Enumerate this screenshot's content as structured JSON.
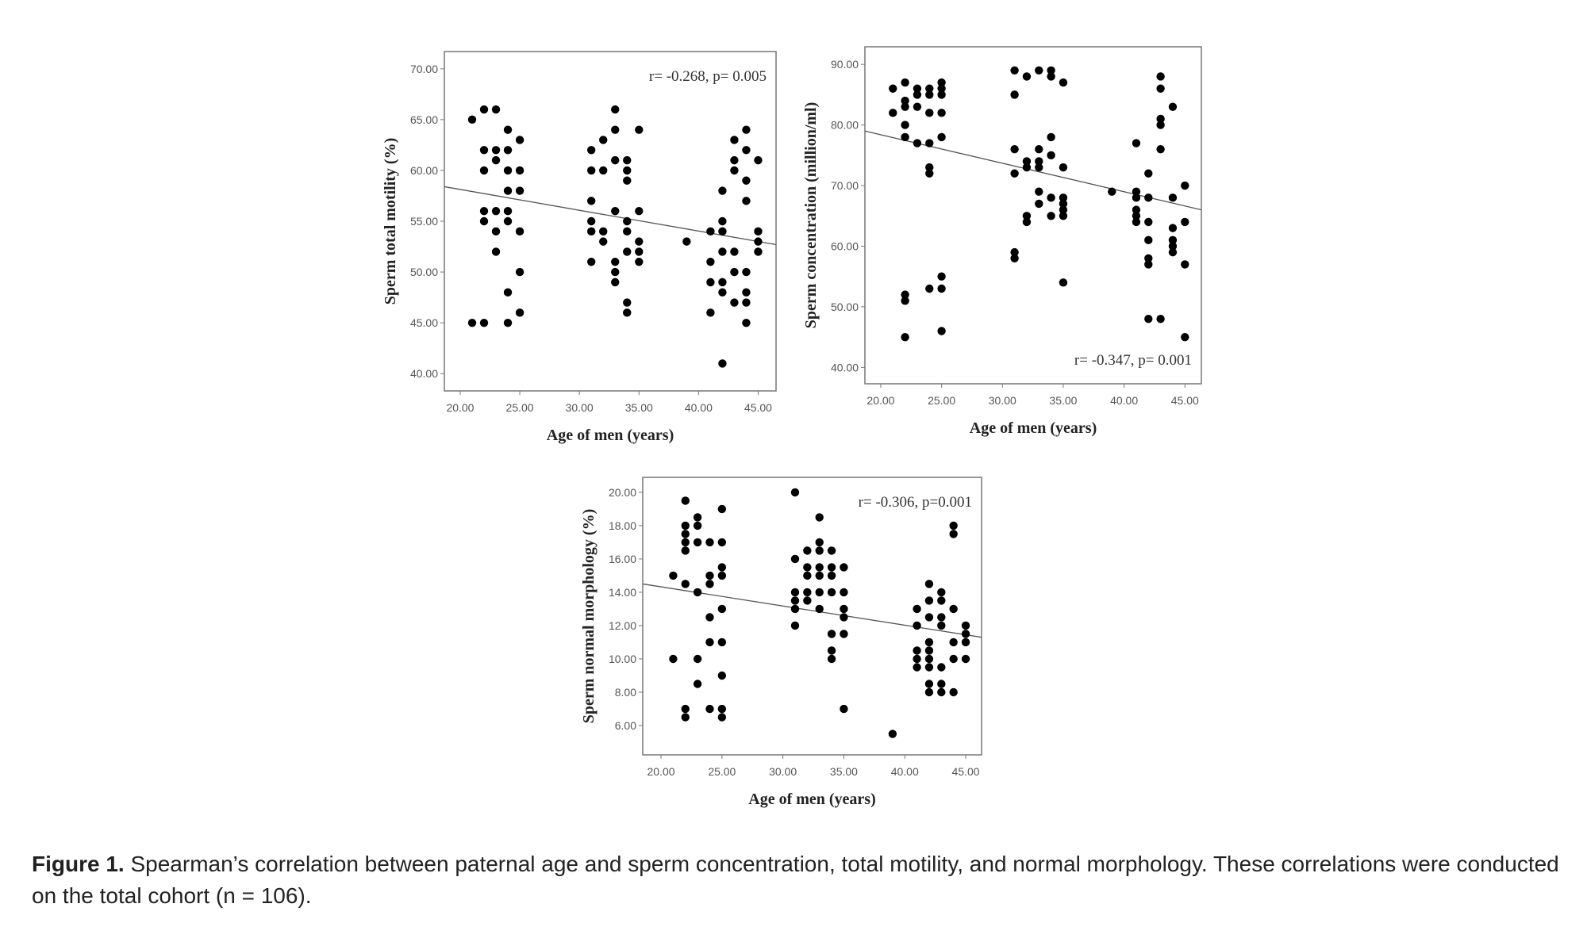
{
  "caption": {
    "label": "Figure 1.",
    "text": " Spearman’s correlation between paternal age and sperm concentration, total motility, and normal morphology. These correlations were conducted on the total cohort (n = 106)."
  },
  "chart_data": [
    {
      "type": "scatter",
      "title": "",
      "xlabel": "Age of men (years)",
      "ylabel": "Sperm total motility (%)",
      "annotation": "r= -0.268, p= 0.005",
      "xlim": [
        18.67,
        46.5
      ],
      "ylim": [
        38.3,
        71.7
      ],
      "xticks": [
        "20.00",
        "25.00",
        "30.00",
        "35.00",
        "40.00",
        "45.00"
      ],
      "yticks": [
        "40.00",
        "45.00",
        "50.00",
        "55.00",
        "60.00",
        "65.00",
        "70.00"
      ],
      "fit_line": [
        [
          18.67,
          58.4
        ],
        [
          46.5,
          52.7
        ]
      ],
      "points_by_age": {
        "21": [
          65,
          45
        ],
        "22": [
          66,
          62,
          60,
          56,
          55,
          45
        ],
        "23": [
          66,
          62,
          61,
          56,
          54,
          52
        ],
        "24": [
          64,
          62,
          60,
          58,
          56,
          55,
          48,
          45
        ],
        "25": [
          63,
          60,
          58,
          54,
          50,
          46
        ],
        "31": [
          62,
          60,
          57,
          55,
          54,
          51
        ],
        "32": [
          63,
          60,
          54,
          53
        ],
        "33": [
          66,
          64,
          61,
          56,
          51,
          50,
          49
        ],
        "34": [
          61,
          60,
          59,
          55,
          54,
          52,
          47,
          46
        ],
        "35": [
          64,
          56,
          53,
          52,
          51
        ],
        "39": [
          53
        ],
        "41": [
          54,
          51,
          49,
          46
        ],
        "42": [
          58,
          55,
          54,
          52,
          49,
          48,
          41
        ],
        "43": [
          63,
          61,
          60,
          52,
          50,
          47
        ],
        "44": [
          64,
          62,
          59,
          57,
          50,
          48,
          47,
          45
        ],
        "45": [
          61,
          54,
          53,
          52
        ]
      }
    },
    {
      "type": "scatter",
      "title": "",
      "xlabel": "Age of men (years)",
      "ylabel": "Sperm concentration (million/ml)",
      "annotation": "r= -0.347, p= 0.001",
      "xlim": [
        18.7,
        46.35
      ],
      "ylim": [
        37.3,
        92.9
      ],
      "xticks": [
        "20.00",
        "25.00",
        "30.00",
        "35.00",
        "40.00",
        "45.00"
      ],
      "yticks": [
        "40.00",
        "50.00",
        "60.00",
        "70.00",
        "80.00",
        "90.00"
      ],
      "fit_line": [
        [
          18.7,
          79
        ],
        [
          46.35,
          66
        ]
      ],
      "points_by_age": {
        "21": [
          86,
          82
        ],
        "22": [
          87,
          84,
          83,
          80,
          78,
          52,
          51,
          45
        ],
        "23": [
          86,
          85,
          83,
          77
        ],
        "24": [
          86,
          85,
          82,
          77,
          73,
          72,
          53
        ],
        "25": [
          87,
          86,
          85,
          82,
          78,
          55,
          53,
          46
        ],
        "31": [
          89,
          85,
          76,
          72,
          59,
          58
        ],
        "32": [
          88,
          74,
          73,
          65,
          64
        ],
        "33": [
          89,
          76,
          74,
          73,
          69,
          67
        ],
        "34": [
          89,
          88,
          78,
          75,
          68,
          65
        ],
        "35": [
          87,
          73,
          68,
          67,
          66,
          65,
          54
        ],
        "39": [
          69
        ],
        "41": [
          77,
          69,
          68,
          66,
          65,
          64
        ],
        "42": [
          72,
          68,
          64,
          61,
          58,
          57,
          48
        ],
        "43": [
          88,
          86,
          81,
          80,
          76,
          48
        ],
        "44": [
          83,
          68,
          63,
          61,
          60,
          59
        ],
        "45": [
          70,
          64,
          57,
          45
        ]
      }
    },
    {
      "type": "scatter",
      "title": "",
      "xlabel": "Age of men (years)",
      "ylabel": "Sperm normal morphology (%)",
      "annotation": "r= -0.306, p=0.001",
      "xlim": [
        18.5,
        46.3
      ],
      "ylim": [
        4.24,
        20.9
      ],
      "xticks": [
        "20.00",
        "25.00",
        "30.00",
        "35.00",
        "40.00",
        "45.00"
      ],
      "yticks": [
        "6.00",
        "8.00",
        "10.00",
        "12.00",
        "14.00",
        "16.00",
        "18.00",
        "20.00"
      ],
      "fit_line": [
        [
          18.5,
          14.5
        ],
        [
          46.3,
          11.3
        ]
      ],
      "points_by_age": {
        "21": [
          15,
          10
        ],
        "22": [
          19.5,
          18,
          17.5,
          17,
          16.5,
          14.5,
          7,
          6.5
        ],
        "23": [
          18.5,
          18,
          17,
          14,
          10,
          8.5
        ],
        "24": [
          17,
          15,
          14.5,
          12.5,
          11,
          7
        ],
        "25": [
          19,
          17,
          15.5,
          15,
          13,
          11,
          9,
          7,
          6.5
        ],
        "31": [
          20,
          16,
          14,
          13.5,
          13,
          12
        ],
        "32": [
          16.5,
          15.5,
          15,
          14,
          13.5
        ],
        "33": [
          18.5,
          17,
          16.5,
          15.5,
          15,
          14,
          13
        ],
        "34": [
          16.5,
          15.5,
          15,
          14,
          11.5,
          10.5,
          10
        ],
        "35": [
          15.5,
          14,
          13,
          12.5,
          11.5,
          7
        ],
        "39": [
          5.5
        ],
        "41": [
          13,
          12,
          10.5,
          10,
          9.5
        ],
        "42": [
          14.5,
          13.5,
          12.5,
          11,
          10.5,
          10,
          9.5,
          8.5,
          8
        ],
        "43": [
          14,
          13.5,
          12.5,
          12,
          9.5,
          8.5,
          8
        ],
        "44": [
          18,
          17.5,
          13,
          11,
          10,
          8
        ],
        "45": [
          12,
          11.5,
          11,
          10
        ]
      }
    }
  ]
}
